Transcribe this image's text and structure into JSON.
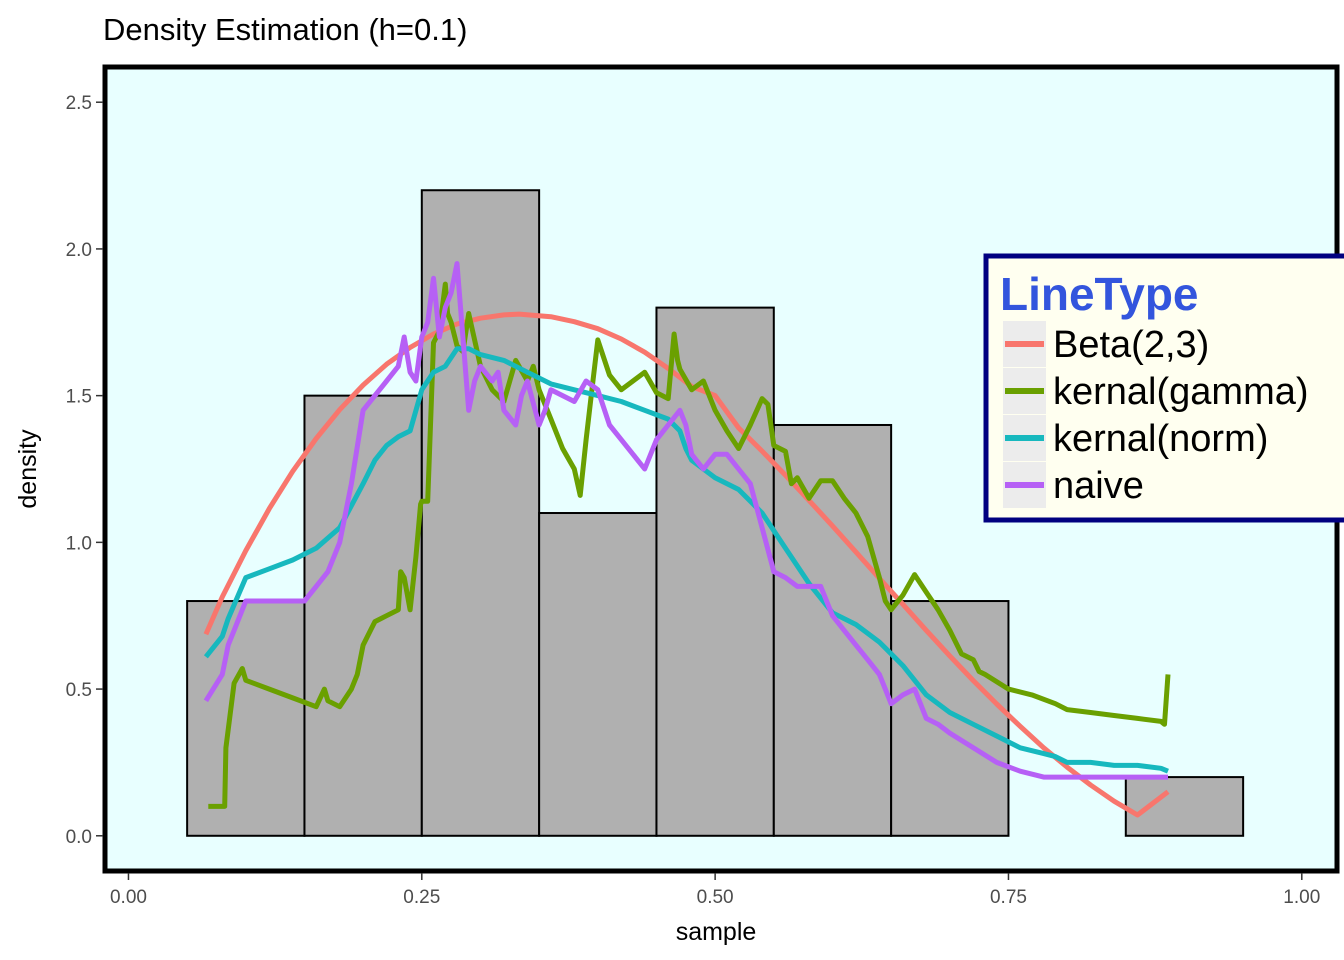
{
  "chart_data": {
    "type": "histogram+line",
    "title": "Density Estimation (h=0.1)",
    "xlabel": "sample",
    "ylabel": "density",
    "xlim": [
      -0.02,
      1.03
    ],
    "ylim": [
      -0.12,
      2.62
    ],
    "x_ticks": [
      0.0,
      0.25,
      0.5,
      0.75,
      1.0
    ],
    "x_tick_labels": [
      "0.00",
      "0.25",
      "0.50",
      "0.75",
      "1.00"
    ],
    "y_ticks": [
      0.0,
      0.5,
      1.0,
      1.5,
      2.0,
      2.5
    ],
    "y_tick_labels": [
      "0.0",
      "0.5",
      "1.0",
      "1.5",
      "2.0",
      "2.5"
    ],
    "grid": false,
    "panel_background": "#e8ffff",
    "histogram": {
      "fill": "#b0b0b0",
      "stroke": "#000000",
      "bins": [
        {
          "x0": 0.05,
          "x1": 0.15,
          "density": 0.8
        },
        {
          "x0": 0.15,
          "x1": 0.25,
          "density": 1.5
        },
        {
          "x0": 0.25,
          "x1": 0.35,
          "density": 2.2
        },
        {
          "x0": 0.35,
          "x1": 0.45,
          "density": 1.1
        },
        {
          "x0": 0.45,
          "x1": 0.55,
          "density": 1.8
        },
        {
          "x0": 0.55,
          "x1": 0.65,
          "density": 1.4
        },
        {
          "x0": 0.65,
          "x1": 0.75,
          "density": 0.8
        },
        {
          "x0": 0.75,
          "x1": 0.85,
          "density": 0.0
        },
        {
          "x0": 0.85,
          "x1": 0.95,
          "density": 0.2
        }
      ]
    },
    "legend": {
      "title": "LineType",
      "position": "right",
      "background": "#fffff0",
      "border": "#000080",
      "entries": [
        "Beta(2,3)",
        "kernal(gamma)",
        "kernal(norm)",
        "naive"
      ]
    },
    "series": [
      {
        "name": "Beta(2,3)",
        "color": "#f8766d",
        "x": [
          0.066,
          0.08,
          0.1,
          0.12,
          0.14,
          0.16,
          0.18,
          0.2,
          0.22,
          0.24,
          0.26,
          0.28,
          0.3,
          0.32,
          0.333,
          0.36,
          0.38,
          0.4,
          0.42,
          0.44,
          0.46,
          0.48,
          0.5,
          0.52,
          0.54,
          0.56,
          0.58,
          0.6,
          0.62,
          0.64,
          0.66,
          0.68,
          0.7,
          0.72,
          0.74,
          0.76,
          0.78,
          0.8,
          0.82,
          0.84,
          0.86,
          0.886
        ],
        "y": [
          0.687,
          0.814,
          0.972,
          1.115,
          1.242,
          1.354,
          1.452,
          1.536,
          1.607,
          1.664,
          1.71,
          1.744,
          1.764,
          1.775,
          1.778,
          1.769,
          1.752,
          1.728,
          1.693,
          1.648,
          1.593,
          1.531,
          1.5,
          1.39,
          1.311,
          1.229,
          1.143,
          1.056,
          0.967,
          0.877,
          0.789,
          0.7,
          0.613,
          0.529,
          0.449,
          0.373,
          0.3,
          0.234,
          0.173,
          0.118,
          0.071,
          0.15
        ]
      },
      {
        "name": "kernal(gamma)",
        "color": "#6aa000",
        "x": [
          0.068,
          0.082,
          0.083,
          0.09,
          0.097,
          0.1,
          0.12,
          0.14,
          0.16,
          0.167,
          0.17,
          0.18,
          0.19,
          0.195,
          0.2,
          0.21,
          0.22,
          0.23,
          0.232,
          0.235,
          0.24,
          0.245,
          0.249,
          0.25,
          0.255,
          0.26,
          0.265,
          0.27,
          0.272,
          0.275,
          0.28,
          0.285,
          0.29,
          0.3,
          0.31,
          0.32,
          0.33,
          0.34,
          0.345,
          0.35,
          0.36,
          0.37,
          0.38,
          0.385,
          0.39,
          0.395,
          0.4,
          0.41,
          0.42,
          0.43,
          0.44,
          0.45,
          0.46,
          0.465,
          0.468,
          0.47,
          0.48,
          0.49,
          0.5,
          0.51,
          0.52,
          0.53,
          0.54,
          0.545,
          0.55,
          0.56,
          0.565,
          0.57,
          0.58,
          0.59,
          0.6,
          0.61,
          0.62,
          0.63,
          0.64,
          0.645,
          0.65,
          0.66,
          0.67,
          0.68,
          0.69,
          0.7,
          0.71,
          0.72,
          0.725,
          0.73,
          0.75,
          0.77,
          0.79,
          0.8,
          0.82,
          0.84,
          0.86,
          0.88,
          0.883,
          0.886
        ],
        "y": [
          0.1,
          0.1,
          0.3,
          0.52,
          0.57,
          0.53,
          0.5,
          0.47,
          0.44,
          0.5,
          0.46,
          0.44,
          0.5,
          0.55,
          0.65,
          0.73,
          0.75,
          0.77,
          0.9,
          0.88,
          0.77,
          0.95,
          1.13,
          1.14,
          1.14,
          1.68,
          1.72,
          1.88,
          1.78,
          1.75,
          1.67,
          1.65,
          1.78,
          1.6,
          1.52,
          1.48,
          1.62,
          1.55,
          1.6,
          1.52,
          1.42,
          1.32,
          1.25,
          1.16,
          1.35,
          1.52,
          1.69,
          1.57,
          1.52,
          1.55,
          1.58,
          1.51,
          1.49,
          1.71,
          1.62,
          1.59,
          1.52,
          1.55,
          1.45,
          1.38,
          1.32,
          1.4,
          1.49,
          1.47,
          1.33,
          1.31,
          1.2,
          1.22,
          1.15,
          1.21,
          1.21,
          1.15,
          1.1,
          1.02,
          0.88,
          0.8,
          0.77,
          0.82,
          0.89,
          0.83,
          0.77,
          0.7,
          0.62,
          0.6,
          0.56,
          0.55,
          0.5,
          0.48,
          0.45,
          0.43,
          0.42,
          0.41,
          0.4,
          0.39,
          0.38,
          0.55
        ]
      },
      {
        "name": "kernal(norm)",
        "color": "#17b8be",
        "x": [
          0.066,
          0.08,
          0.085,
          0.1,
          0.12,
          0.14,
          0.16,
          0.18,
          0.2,
          0.21,
          0.22,
          0.23,
          0.24,
          0.25,
          0.26,
          0.27,
          0.28,
          0.29,
          0.3,
          0.32,
          0.33,
          0.34,
          0.36,
          0.38,
          0.4,
          0.42,
          0.44,
          0.46,
          0.47,
          0.475,
          0.48,
          0.5,
          0.52,
          0.54,
          0.56,
          0.58,
          0.6,
          0.62,
          0.64,
          0.66,
          0.68,
          0.7,
          0.72,
          0.74,
          0.76,
          0.78,
          0.79,
          0.8,
          0.82,
          0.84,
          0.86,
          0.88,
          0.886
        ],
        "y": [
          0.61,
          0.68,
          0.74,
          0.88,
          0.91,
          0.94,
          0.98,
          1.05,
          1.2,
          1.28,
          1.33,
          1.36,
          1.38,
          1.52,
          1.58,
          1.6,
          1.66,
          1.66,
          1.64,
          1.62,
          1.6,
          1.58,
          1.54,
          1.52,
          1.5,
          1.48,
          1.45,
          1.42,
          1.38,
          1.32,
          1.28,
          1.22,
          1.18,
          1.1,
          0.98,
          0.86,
          0.76,
          0.72,
          0.66,
          0.58,
          0.48,
          0.42,
          0.38,
          0.34,
          0.3,
          0.28,
          0.27,
          0.25,
          0.25,
          0.24,
          0.24,
          0.23,
          0.22
        ]
      },
      {
        "name": "naive",
        "color": "#b660f5",
        "x": [
          0.066,
          0.08,
          0.085,
          0.09,
          0.1,
          0.12,
          0.14,
          0.15,
          0.16,
          0.17,
          0.18,
          0.19,
          0.2,
          0.21,
          0.22,
          0.23,
          0.235,
          0.24,
          0.245,
          0.25,
          0.255,
          0.26,
          0.265,
          0.27,
          0.275,
          0.28,
          0.285,
          0.29,
          0.295,
          0.3,
          0.31,
          0.315,
          0.32,
          0.33,
          0.335,
          0.34,
          0.35,
          0.355,
          0.36,
          0.37,
          0.38,
          0.39,
          0.4,
          0.41,
          0.42,
          0.43,
          0.44,
          0.45,
          0.46,
          0.47,
          0.475,
          0.48,
          0.49,
          0.5,
          0.51,
          0.52,
          0.53,
          0.54,
          0.55,
          0.56,
          0.57,
          0.58,
          0.59,
          0.6,
          0.61,
          0.62,
          0.63,
          0.64,
          0.645,
          0.65,
          0.66,
          0.67,
          0.68,
          0.69,
          0.7,
          0.72,
          0.74,
          0.76,
          0.78,
          0.8,
          0.82,
          0.84,
          0.86,
          0.88,
          0.886
        ],
        "y": [
          0.46,
          0.55,
          0.65,
          0.7,
          0.8,
          0.8,
          0.8,
          0.8,
          0.85,
          0.9,
          1.0,
          1.2,
          1.45,
          1.5,
          1.55,
          1.6,
          1.7,
          1.58,
          1.55,
          1.7,
          1.75,
          1.9,
          1.7,
          1.8,
          1.85,
          1.95,
          1.7,
          1.45,
          1.55,
          1.6,
          1.55,
          1.58,
          1.45,
          1.4,
          1.5,
          1.55,
          1.4,
          1.45,
          1.52,
          1.5,
          1.48,
          1.55,
          1.52,
          1.4,
          1.35,
          1.3,
          1.25,
          1.35,
          1.4,
          1.45,
          1.4,
          1.3,
          1.25,
          1.3,
          1.3,
          1.25,
          1.2,
          1.05,
          0.9,
          0.88,
          0.85,
          0.85,
          0.85,
          0.75,
          0.7,
          0.65,
          0.6,
          0.55,
          0.5,
          0.45,
          0.48,
          0.5,
          0.4,
          0.38,
          0.35,
          0.3,
          0.25,
          0.22,
          0.2,
          0.2,
          0.2,
          0.2,
          0.2,
          0.2,
          0.2
        ]
      }
    ]
  }
}
